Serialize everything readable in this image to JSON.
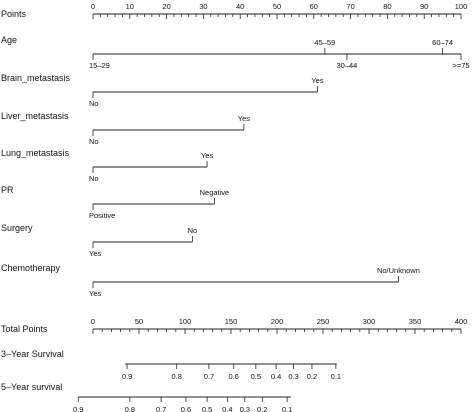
{
  "chart_data": {
    "type": "nomogram",
    "title": "",
    "points_axis": {
      "label": "Points",
      "range": [
        0,
        100
      ],
      "major_ticks": [
        0,
        10,
        20,
        30,
        40,
        50,
        60,
        70,
        80,
        90,
        100
      ],
      "minor_step": 2
    },
    "variables": [
      {
        "name": "Age",
        "levels": [
          {
            "label": "15–29",
            "points": 0,
            "side": "below"
          },
          {
            "label": "45–59",
            "points": 63,
            "side": "above"
          },
          {
            "label": "30–44",
            "points": 69,
            "side": "below"
          },
          {
            "label": "60–74",
            "points": 95,
            "side": "above"
          },
          {
            "label": ">=75",
            "points": 100,
            "side": "below"
          }
        ]
      },
      {
        "name": "Brain_metastasis",
        "levels": [
          {
            "label": "No",
            "points": 0,
            "side": "below"
          },
          {
            "label": "Yes",
            "points": 61,
            "side": "above"
          }
        ]
      },
      {
        "name": "Liver_metastasis",
        "levels": [
          {
            "label": "No",
            "points": 0,
            "side": "below"
          },
          {
            "label": "Yes",
            "points": 41,
            "side": "above"
          }
        ]
      },
      {
        "name": "Lung_metastasis",
        "levels": [
          {
            "label": "No",
            "points": 0,
            "side": "below"
          },
          {
            "label": "Yes",
            "points": 31,
            "side": "above"
          }
        ]
      },
      {
        "name": "PR",
        "levels": [
          {
            "label": "Positive",
            "points": 0,
            "side": "below"
          },
          {
            "label": "Negative",
            "points": 33,
            "side": "above"
          }
        ]
      },
      {
        "name": "Surgery",
        "levels": [
          {
            "label": "Yes",
            "points": 0,
            "side": "below"
          },
          {
            "label": "No",
            "points": 27,
            "side": "above"
          }
        ]
      },
      {
        "name": "Chemotherapy",
        "levels": [
          {
            "label": "Yes",
            "points": 0,
            "side": "below"
          },
          {
            "label": "No/Unknown",
            "points": 83,
            "side": "above"
          }
        ]
      }
    ],
    "total_points_axis": {
      "label": "Total Points",
      "range": [
        0,
        400
      ],
      "major_ticks": [
        0,
        50,
        100,
        150,
        200,
        250,
        300,
        350,
        400
      ],
      "minor_step": 10
    },
    "survival_axes": [
      {
        "label": "3–Year Survival",
        "line_total_points": [
          35,
          265
        ],
        "ticks": [
          {
            "label": "0.9",
            "total_points": 37
          },
          {
            "label": "0.8",
            "total_points": 91
          },
          {
            "label": "0.7",
            "total_points": 126
          },
          {
            "label": "0.6",
            "total_points": 153
          },
          {
            "label": "0.5",
            "total_points": 177
          },
          {
            "label": "0.4",
            "total_points": 199
          },
          {
            "label": "0.3",
            "total_points": 218
          },
          {
            "label": "0.2",
            "total_points": 238
          },
          {
            "label": "0.1",
            "total_points": 264
          }
        ]
      },
      {
        "label": "5–Year survival",
        "line_total_points": [
          -16,
          215
        ],
        "ticks": [
          {
            "label": "0.9",
            "total_points": -16
          },
          {
            "label": "0.8",
            "total_points": 40
          },
          {
            "label": "0.7",
            "total_points": 74
          },
          {
            "label": "0.6",
            "total_points": 101
          },
          {
            "label": "0.5",
            "total_points": 124
          },
          {
            "label": "0.4",
            "total_points": 146
          },
          {
            "label": "0.3",
            "total_points": 165
          },
          {
            "label": "0.2",
            "total_points": 184
          },
          {
            "label": "0.1",
            "total_points": 211
          }
        ]
      }
    ]
  }
}
